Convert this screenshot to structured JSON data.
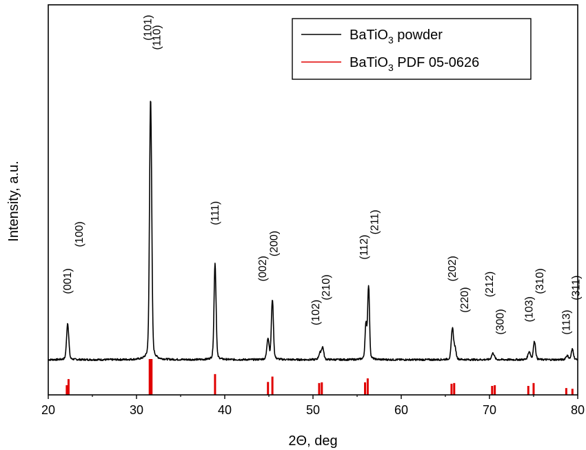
{
  "chart_data": {
    "type": "line",
    "xlabel": "2Θ, deg",
    "ylabel": "Intensity, a.u.",
    "xlim": [
      20,
      80
    ],
    "xticks": [
      20,
      30,
      40,
      50,
      60,
      70,
      80
    ],
    "ylim": [
      0,
      100
    ],
    "grid": false,
    "legend_position": "top-right",
    "colors": {
      "powder": "#000000",
      "reference": "#e00000"
    },
    "series": [
      {
        "name": "BaTiO3 powder",
        "name_parts": {
          "base": "BaTiO",
          "sub": "3",
          "rest": " powder"
        },
        "peaks": [
          {
            "x": 22.2,
            "h": 14,
            "w": 0.12
          },
          {
            "x": 31.6,
            "h": 100,
            "w": 0.12
          },
          {
            "x": 38.9,
            "h": 37,
            "w": 0.11
          },
          {
            "x": 44.9,
            "h": 8,
            "w": 0.12
          },
          {
            "x": 45.4,
            "h": 23,
            "w": 0.11
          },
          {
            "x": 50.8,
            "h": 2.5,
            "w": 0.14
          },
          {
            "x": 51.1,
            "h": 4.5,
            "w": 0.12
          },
          {
            "x": 56.0,
            "h": 13,
            "w": 0.1
          },
          {
            "x": 56.3,
            "h": 28,
            "w": 0.1
          },
          {
            "x": 65.8,
            "h": 12,
            "w": 0.12
          },
          {
            "x": 66.1,
            "h": 4,
            "w": 0.12
          },
          {
            "x": 70.4,
            "h": 2.5,
            "w": 0.15
          },
          {
            "x": 74.5,
            "h": 3,
            "w": 0.14
          },
          {
            "x": 75.1,
            "h": 7,
            "w": 0.12
          },
          {
            "x": 78.8,
            "h": 1.5,
            "w": 0.15
          },
          {
            "x": 79.4,
            "h": 4,
            "w": 0.12
          }
        ]
      },
      {
        "name": "BaTiO3 PDF 05-0626",
        "name_parts": {
          "base": "BaTiO",
          "sub": "3",
          "rest": " PDF 05-0626"
        },
        "sticks": [
          {
            "x": 22.1,
            "h": 27
          },
          {
            "x": 22.3,
            "h": 44
          },
          {
            "x": 31.5,
            "h": 100
          },
          {
            "x": 31.7,
            "h": 100
          },
          {
            "x": 38.9,
            "h": 58
          },
          {
            "x": 44.9,
            "h": 36
          },
          {
            "x": 45.4,
            "h": 51
          },
          {
            "x": 50.7,
            "h": 33
          },
          {
            "x": 51.0,
            "h": 35
          },
          {
            "x": 55.9,
            "h": 35
          },
          {
            "x": 56.2,
            "h": 46
          },
          {
            "x": 65.7,
            "h": 31
          },
          {
            "x": 66.0,
            "h": 33
          },
          {
            "x": 70.3,
            "h": 25
          },
          {
            "x": 70.6,
            "h": 27
          },
          {
            "x": 74.4,
            "h": 25
          },
          {
            "x": 75.0,
            "h": 33
          },
          {
            "x": 78.7,
            "h": 19
          },
          {
            "x": 79.4,
            "h": 17
          }
        ]
      }
    ],
    "annotations": [
      {
        "text": "(001)",
        "x": 22.2,
        "level": 21
      },
      {
        "text": "(100)",
        "x": 23.5,
        "level": 36
      },
      {
        "text": "(101)",
        "x": 31.3,
        "level": 102
      },
      {
        "text": "(110)",
        "x": 32.3,
        "level": 99
      },
      {
        "text": "(111)",
        "x": 38.9,
        "level": 43
      },
      {
        "text": "(002)",
        "x": 44.3,
        "level": 25
      },
      {
        "text": "(200)",
        "x": 45.6,
        "level": 33
      },
      {
        "text": "(102)",
        "x": 50.3,
        "level": 11
      },
      {
        "text": "(210)",
        "x": 51.5,
        "level": 19
      },
      {
        "text": "(112)",
        "x": 55.8,
        "level": 32
      },
      {
        "text": "(211)",
        "x": 57.0,
        "level": 40
      },
      {
        "text": "(202)",
        "x": 65.8,
        "level": 25
      },
      {
        "text": "(220)",
        "x": 67.2,
        "level": 15
      },
      {
        "text": "(212)",
        "x": 70.0,
        "level": 20
      },
      {
        "text": "(300)",
        "x": 71.2,
        "level": 8
      },
      {
        "text": "(103)",
        "x": 74.5,
        "level": 12
      },
      {
        "text": "(310)",
        "x": 75.7,
        "level": 21
      },
      {
        "text": "(113)",
        "x": 78.7,
        "level": 8
      },
      {
        "text": "(311)",
        "x": 79.8,
        "level": 19
      }
    ]
  }
}
